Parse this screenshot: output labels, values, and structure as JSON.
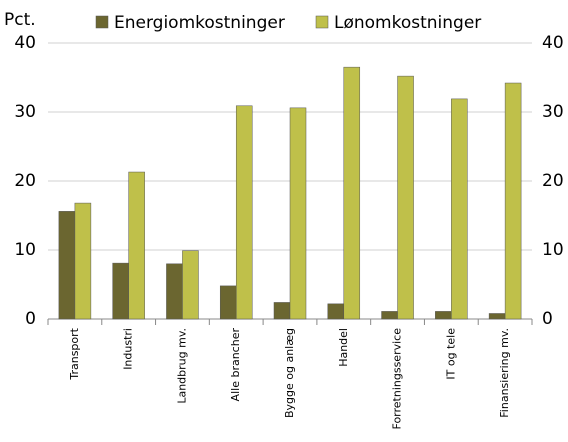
{
  "chart_data": {
    "type": "bar",
    "y_label": "Pct.",
    "categories": [
      "Transport",
      "Industri",
      "Landbrug mv.",
      "Alle brancher",
      "Bygge og anlæg",
      "Handel",
      "Forretningsservice",
      "IT og tele",
      "Finansiering mv."
    ],
    "series": [
      {
        "name": "Energiomkostninger",
        "color": "#6b6630",
        "values": [
          15.6,
          8.1,
          8.0,
          4.8,
          2.4,
          2.2,
          1.1,
          1.1,
          0.8
        ]
      },
      {
        "name": "Lønomkostninger",
        "color": "#bfc04a",
        "values": [
          16.8,
          21.3,
          9.9,
          30.9,
          30.6,
          36.5,
          35.2,
          31.9,
          34.2
        ]
      }
    ],
    "ylim": [
      0,
      40
    ],
    "yticks": [
      0,
      10,
      20,
      30,
      40
    ],
    "y2lim": [
      0,
      40
    ],
    "y2ticks": [
      0,
      10,
      20,
      30,
      40
    ],
    "grid": true
  }
}
